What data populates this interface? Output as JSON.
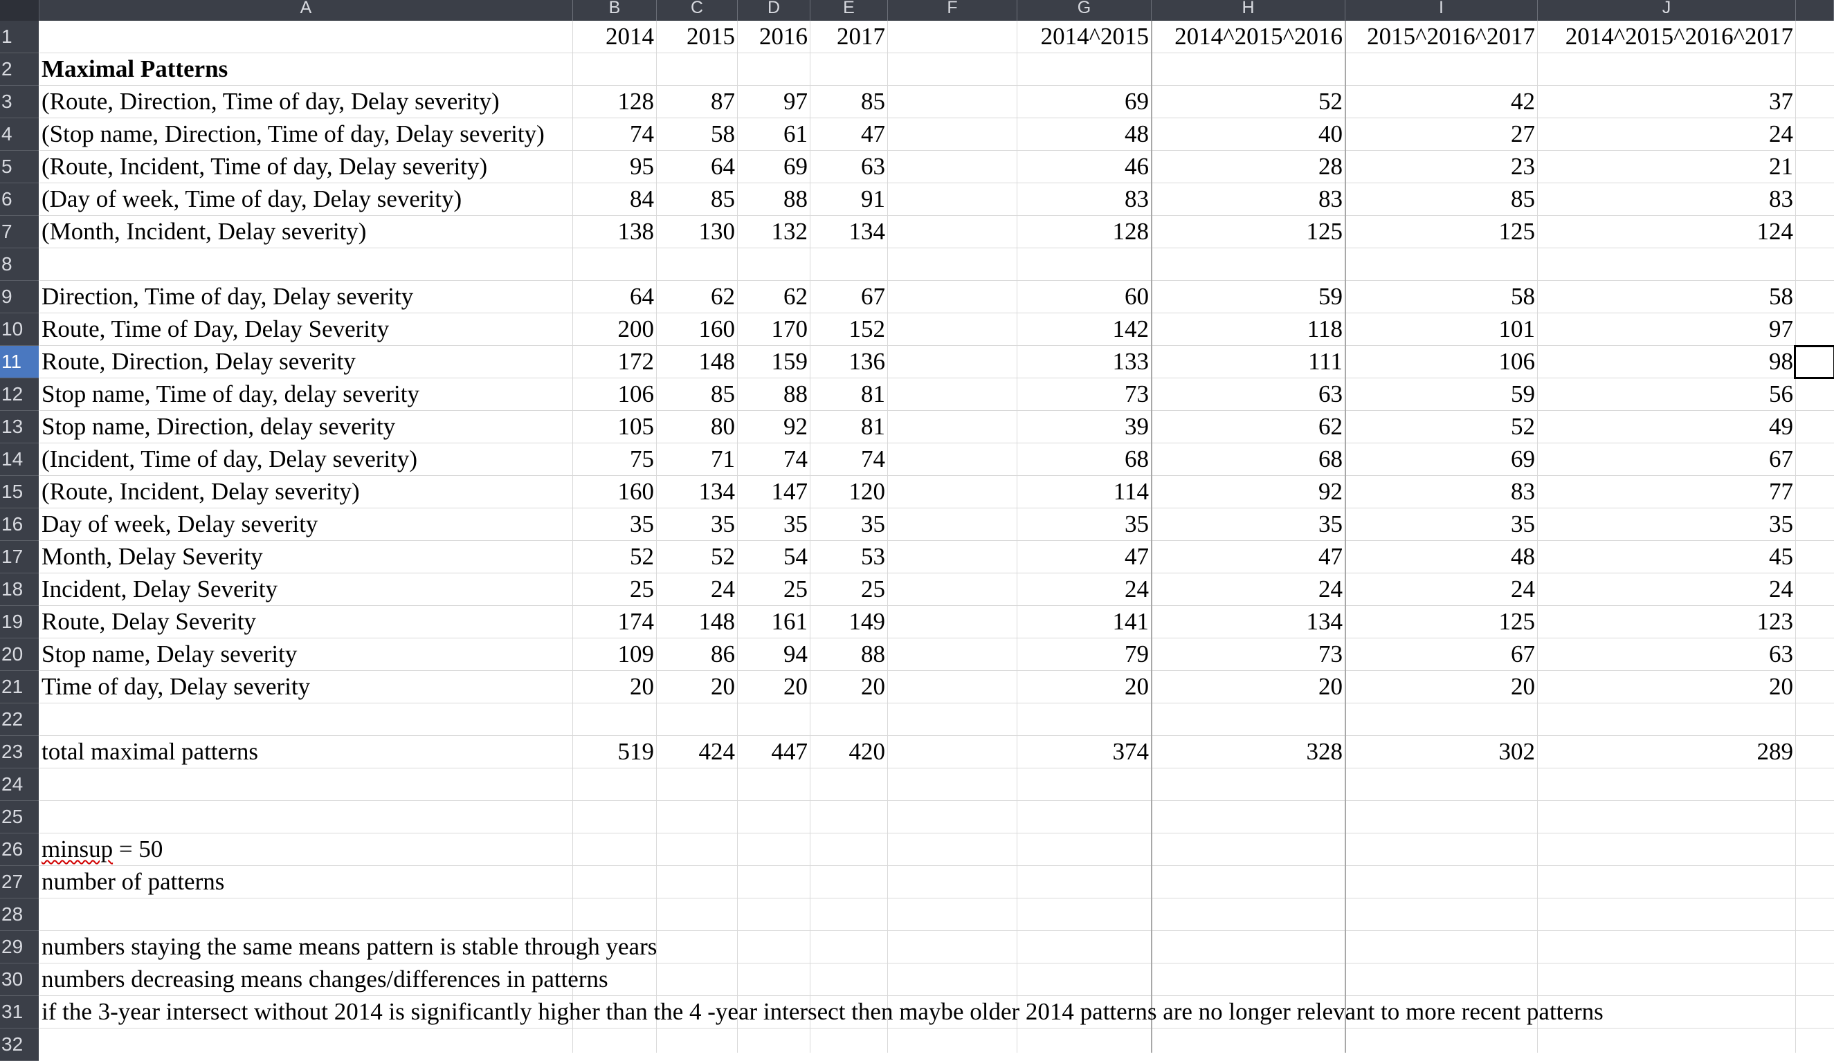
{
  "sheet": {
    "columns": [
      "A",
      "B",
      "C",
      "D",
      "E",
      "F",
      "G",
      "H",
      "I",
      "J"
    ],
    "active_row": 11,
    "header_row": {
      "B": "2014",
      "C": "2015",
      "D": "2016",
      "E": "2017",
      "G": "2014^2015",
      "H": "2014^2015^2016",
      "I": "2015^2016^2017",
      "J": "2014^2015^2016^2017"
    },
    "title": "Maximal Patterns",
    "data_rows": [
      {
        "row": 3,
        "label": "(Route, Direction, Time of day, Delay severity)",
        "values": [
          "128",
          "87",
          "97",
          "85",
          "69",
          "52",
          "42",
          "37"
        ]
      },
      {
        "row": 4,
        "label": "(Stop name, Direction, Time of day, Delay severity)",
        "values": [
          "74",
          "58",
          "61",
          "47",
          "48",
          "40",
          "27",
          "24"
        ]
      },
      {
        "row": 5,
        "label": "(Route, Incident, Time of day, Delay severity)",
        "values": [
          "95",
          "64",
          "69",
          "63",
          "46",
          "28",
          "23",
          "21"
        ]
      },
      {
        "row": 6,
        "label": "(Day of week, Time of day, Delay severity)",
        "values": [
          "84",
          "85",
          "88",
          "91",
          "83",
          "83",
          "85",
          "83"
        ]
      },
      {
        "row": 7,
        "label": "(Month, Incident, Delay severity)",
        "values": [
          "138",
          "130",
          "132",
          "134",
          "128",
          "125",
          "125",
          "124"
        ]
      },
      {
        "row": 9,
        "label": "Direction, Time of day, Delay severity",
        "values": [
          "64",
          "62",
          "62",
          "67",
          "60",
          "59",
          "58",
          "58"
        ]
      },
      {
        "row": 10,
        "label": "Route, Time of Day, Delay Severity",
        "values": [
          "200",
          "160",
          "170",
          "152",
          "142",
          "118",
          "101",
          "97"
        ]
      },
      {
        "row": 11,
        "label": "Route, Direction, Delay severity",
        "values": [
          "172",
          "148",
          "159",
          "136",
          "133",
          "111",
          "106",
          "98"
        ]
      },
      {
        "row": 12,
        "label": "Stop name, Time of day, delay severity",
        "values": [
          "106",
          "85",
          "88",
          "81",
          "73",
          "63",
          "59",
          "56"
        ]
      },
      {
        "row": 13,
        "label": "Stop name, Direction, delay severity",
        "values": [
          "105",
          "80",
          "92",
          "81",
          "39",
          "62",
          "52",
          "49"
        ]
      },
      {
        "row": 14,
        "label": "(Incident, Time of day, Delay severity)",
        "values": [
          "75",
          "71",
          "74",
          "74",
          "68",
          "68",
          "69",
          "67"
        ]
      },
      {
        "row": 15,
        "label": "(Route, Incident, Delay severity)",
        "values": [
          "160",
          "134",
          "147",
          "120",
          "114",
          "92",
          "83",
          "77"
        ]
      },
      {
        "row": 16,
        "label": "Day of week, Delay severity",
        "values": [
          "35",
          "35",
          "35",
          "35",
          "35",
          "35",
          "35",
          "35"
        ]
      },
      {
        "row": 17,
        "label": "Month, Delay Severity",
        "values": [
          "52",
          "52",
          "54",
          "53",
          "47",
          "47",
          "48",
          "45"
        ]
      },
      {
        "row": 18,
        "label": "Incident, Delay Severity",
        "values": [
          "25",
          "24",
          "25",
          "25",
          "24",
          "24",
          "24",
          "24"
        ]
      },
      {
        "row": 19,
        "label": "Route, Delay Severity",
        "values": [
          "174",
          "148",
          "161",
          "149",
          "141",
          "134",
          "125",
          "123"
        ]
      },
      {
        "row": 20,
        "label": "Stop name, Delay severity",
        "values": [
          "109",
          "86",
          "94",
          "88",
          "79",
          "73",
          "67",
          "63"
        ]
      },
      {
        "row": 21,
        "label": "Time of day, Delay severity",
        "values": [
          "20",
          "20",
          "20",
          "20",
          "20",
          "20",
          "20",
          "20"
        ]
      },
      {
        "row": 23,
        "label": "total maximal patterns",
        "values": [
          "519",
          "424",
          "447",
          "420",
          "374",
          "328",
          "302",
          "289"
        ]
      }
    ],
    "minsup_word": "minsup",
    "minsup_rest": " = 50",
    "number_of_patterns": "number of patterns",
    "notes": [
      "numbers staying the same means pattern is stable through years",
      "numbers decreasing means changes/differences in patterns",
      "if the 3-year intersect without 2014 is significantly higher than the 4 -year intersect then maybe older 2014 patterns are no longer relevant to more recent patterns"
    ]
  }
}
